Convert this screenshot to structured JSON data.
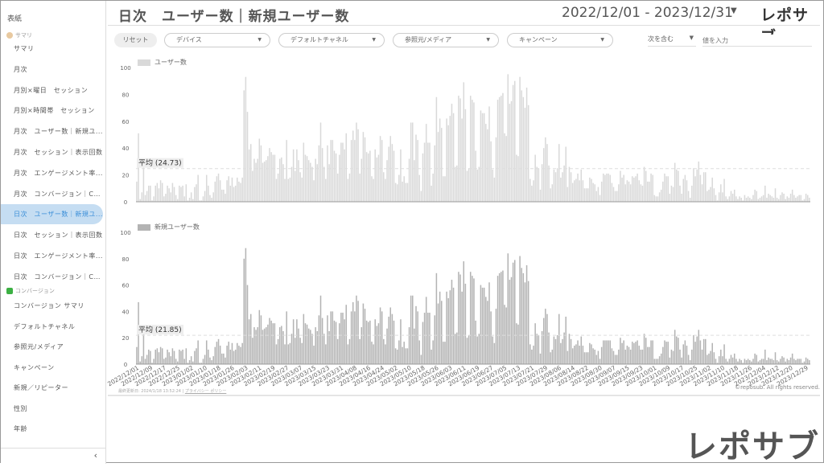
{
  "sidebar": {
    "cover": "表紙",
    "section_summary": "サマリ",
    "summary_items": [
      {
        "label": "サマリ"
      },
      {
        "label": "月次"
      },
      {
        "label": "月別×曜日　セッション"
      },
      {
        "label": "月別×時間帯　セッション"
      },
      {
        "label": "月次　ユーザー数｜新規ユ..."
      },
      {
        "label": "月次　セッション｜表示回数"
      },
      {
        "label": "月次　エンゲージメント率..."
      },
      {
        "label": "月次　コンバージョン｜CVR"
      },
      {
        "label": "日次　ユーザー数｜新規ユ..."
      },
      {
        "label": "日次　セッション｜表示回数"
      },
      {
        "label": "日次　エンゲージメント率..."
      },
      {
        "label": "日次　コンバージョン｜CVR"
      }
    ],
    "active_index": 8,
    "section_conversion": "コンバージョン",
    "conversion_items": [
      {
        "label": "コンバージョン サマリ"
      },
      {
        "label": "デフォルトチャネル"
      },
      {
        "label": "参照元/メディア"
      },
      {
        "label": "キャンペーン"
      },
      {
        "label": "新規／リピーター"
      },
      {
        "label": "性別"
      },
      {
        "label": "年齢"
      }
    ],
    "collapse_icon": "chevron-left-icon",
    "collapse_glyph": "‹"
  },
  "header": {
    "title": "日次　ユーザー数｜新規ユーザー数",
    "date_range": "2022/12/01 - 2023/12/31",
    "logo": "レポサブ"
  },
  "filters": {
    "reset": "リセット",
    "device": "デバイス",
    "channel": "デフォルトチャネル",
    "source": "参照元/メディア",
    "campaign": "キャンペーン",
    "contains": "次を含む",
    "value_placeholder": "値を入力"
  },
  "footer": {
    "updated": "最終更新日: 2024/1/18 13:52:24 | ",
    "privacy": "プライバシー ポリシー",
    "copyright": "©reposub. All rights reserved."
  },
  "watermark_logo": "レポサブ",
  "chart_data": [
    {
      "type": "bar",
      "series_name": "ユーザー数",
      "color": "#d9d9d9",
      "ylim": [
        0,
        100
      ],
      "yticks": [
        0,
        20,
        40,
        60,
        80,
        100
      ],
      "average_label": "平均 (24.73)",
      "average": 24.73,
      "x_start": "2022/12/01",
      "x_end": "2023/12/31",
      "values": [
        15,
        51,
        2,
        7,
        27,
        5,
        8,
        12,
        12,
        1,
        4,
        12,
        14,
        10,
        16,
        14,
        4,
        6,
        12,
        10,
        7,
        14,
        11,
        5,
        2,
        12,
        11,
        12,
        4,
        13,
        1,
        3,
        7,
        2,
        11,
        13,
        20,
        1,
        1,
        4,
        8,
        20,
        12,
        5,
        3,
        7,
        15,
        19,
        21,
        16,
        9,
        9,
        6,
        16,
        19,
        12,
        18,
        11,
        12,
        18,
        15,
        14,
        18,
        83,
        93,
        67,
        39,
        43,
        23,
        32,
        29,
        32,
        47,
        42,
        29,
        30,
        31,
        34,
        40,
        37,
        35,
        35,
        17,
        21,
        32,
        33,
        28,
        17,
        46,
        17,
        18,
        26,
        39,
        23,
        39,
        31,
        22,
        18,
        44,
        35,
        34,
        31,
        29,
        26,
        16,
        32,
        28,
        42,
        59,
        40,
        26,
        17,
        42,
        28,
        46,
        46,
        38,
        36,
        21,
        35,
        44,
        44,
        39,
        51,
        17,
        21,
        46,
        53,
        46,
        59,
        54,
        21,
        32,
        52,
        48,
        37,
        36,
        38,
        19,
        17,
        39,
        33,
        35,
        49,
        46,
        22,
        17,
        31,
        41,
        49,
        43,
        38,
        14,
        13,
        20,
        39,
        15,
        19,
        14,
        14,
        32,
        59,
        59,
        31,
        50,
        46,
        20,
        8,
        36,
        44,
        58,
        44,
        44,
        12,
        21,
        42,
        78,
        52,
        62,
        55,
        19,
        19,
        62,
        57,
        64,
        73,
        66,
        26,
        27,
        79,
        77,
        62,
        89,
        69,
        23,
        25,
        79,
        76,
        74,
        38,
        24,
        26,
        68,
        66,
        66,
        58,
        54,
        71,
        45,
        24,
        18,
        48,
        76,
        78,
        79,
        81,
        51,
        49,
        95,
        73,
        75,
        87,
        90,
        35,
        34,
        93,
        83,
        78,
        70,
        85,
        72,
        17,
        12,
        16,
        35,
        26,
        25,
        9,
        28,
        40,
        48,
        43,
        27,
        10,
        13,
        24,
        22,
        25,
        43,
        18,
        22,
        27,
        41,
        11,
        26,
        22,
        14,
        16,
        17,
        21,
        16,
        24,
        16,
        10,
        10,
        10,
        18,
        17,
        14,
        13,
        8,
        11,
        5,
        15,
        21,
        20,
        21,
        21,
        20,
        14,
        11,
        8,
        8,
        13,
        23,
        18,
        20,
        13,
        16,
        15,
        13,
        19,
        18,
        19,
        21,
        16,
        13,
        12,
        26,
        23,
        15,
        15,
        21,
        20,
        5,
        4,
        4,
        7,
        9,
        15,
        21,
        19,
        19,
        6,
        12,
        11,
        29,
        24,
        23,
        12,
        6,
        17,
        20,
        16,
        8,
        3,
        12,
        25,
        19,
        24,
        30,
        20,
        13,
        22,
        22,
        8,
        9,
        11,
        18,
        10,
        5,
        1,
        7,
        13,
        7,
        17,
        4,
        2,
        4,
        8,
        6,
        9,
        4,
        2,
        4,
        3,
        1,
        5,
        3,
        4,
        3,
        2,
        5,
        9,
        8,
        2,
        3,
        4,
        5,
        12,
        3,
        6,
        5,
        4,
        3,
        10,
        3,
        2,
        5,
        7,
        6,
        2,
        4,
        3,
        6,
        9,
        5,
        3,
        4,
        5,
        5,
        1,
        2,
        6,
        5,
        3
      ]
    },
    {
      "type": "bar",
      "series_name": "新規ユーザー数",
      "color": "#b3b3b3",
      "ylim": [
        0,
        100
      ],
      "yticks": [
        0,
        20,
        40,
        60,
        80,
        100
      ],
      "average_label": "平均 (21.85)",
      "average": 21.85,
      "x_start": "2022/12/01",
      "x_end": "2023/12/31",
      "values": [
        13,
        47,
        2,
        6,
        23,
        4,
        7,
        11,
        10,
        1,
        4,
        11,
        12,
        9,
        13,
        12,
        4,
        5,
        11,
        9,
        6,
        12,
        10,
        4,
        2,
        11,
        10,
        11,
        4,
        12,
        1,
        3,
        6,
        2,
        10,
        12,
        18,
        1,
        1,
        4,
        7,
        18,
        11,
        5,
        3,
        6,
        13,
        17,
        19,
        14,
        8,
        8,
        5,
        14,
        17,
        11,
        16,
        10,
        11,
        16,
        14,
        13,
        16,
        80,
        88,
        60,
        34,
        38,
        20,
        28,
        26,
        28,
        41,
        37,
        26,
        27,
        28,
        30,
        35,
        33,
        31,
        31,
        15,
        19,
        28,
        29,
        25,
        15,
        40,
        15,
        16,
        23,
        34,
        20,
        34,
        27,
        20,
        16,
        38,
        31,
        30,
        27,
        26,
        23,
        14,
        28,
        25,
        37,
        52,
        35,
        23,
        15,
        37,
        25,
        40,
        40,
        33,
        32,
        19,
        31,
        39,
        39,
        34,
        45,
        15,
        19,
        40,
        47,
        40,
        52,
        48,
        19,
        28,
        46,
        42,
        33,
        32,
        33,
        17,
        15,
        34,
        29,
        31,
        43,
        40,
        19,
        15,
        27,
        36,
        43,
        38,
        33,
        12,
        11,
        18,
        34,
        13,
        17,
        12,
        12,
        28,
        52,
        52,
        27,
        44,
        40,
        18,
        7,
        32,
        39,
        51,
        39,
        39,
        11,
        18,
        37,
        69,
        46,
        55,
        48,
        17,
        17,
        55,
        50,
        56,
        64,
        58,
        23,
        24,
        70,
        68,
        55,
        78,
        61,
        20,
        22,
        70,
        67,
        65,
        33,
        21,
        23,
        60,
        58,
        58,
        51,
        48,
        62,
        40,
        21,
        16,
        42,
        67,
        69,
        70,
        71,
        45,
        43,
        84,
        64,
        66,
        77,
        79,
        31,
        30,
        82,
        73,
        69,
        62,
        75,
        63,
        15,
        11,
        14,
        31,
        23,
        22,
        8,
        25,
        35,
        42,
        38,
        24,
        9,
        11,
        21,
        19,
        22,
        38,
        16,
        19,
        24,
        36,
        10,
        23,
        19,
        12,
        14,
        15,
        18,
        14,
        21,
        14,
        9,
        9,
        9,
        16,
        15,
        12,
        11,
        7,
        10,
        4,
        13,
        18,
        18,
        18,
        18,
        18,
        12,
        10,
        7,
        7,
        11,
        20,
        16,
        18,
        11,
        14,
        13,
        11,
        17,
        16,
        17,
        18,
        14,
        11,
        11,
        23,
        20,
        13,
        13,
        18,
        18,
        4,
        4,
        4,
        6,
        8,
        13,
        18,
        17,
        17,
        5,
        11,
        10,
        26,
        21,
        20,
        11,
        5,
        15,
        18,
        14,
        7,
        3,
        11,
        22,
        17,
        21,
        26,
        18,
        11,
        19,
        19,
        7,
        8,
        10,
        16,
        9,
        4,
        1,
        6,
        11,
        6,
        15,
        4,
        2,
        4,
        7,
        5,
        8,
        4,
        2,
        4,
        3,
        1,
        4,
        3,
        4,
        3,
        2,
        4,
        8,
        7,
        2,
        3,
        4,
        4,
        11,
        3,
        5,
        4,
        4,
        3,
        9,
        3,
        2,
        4,
        6,
        5,
        2,
        4,
        3,
        5,
        8,
        4,
        3,
        4,
        4,
        4,
        1,
        2,
        5,
        4,
        3
      ]
    }
  ],
  "x_tick_labels": [
    "2022/12/01",
    "2022/12/09",
    "2022/12/17",
    "2022/12/25",
    "2023/01/02",
    "2023/01/10",
    "2023/01/18",
    "2023/01/26",
    "2023/02/03",
    "2023/02/11",
    "2023/02/19",
    "2023/02/27",
    "2023/03/07",
    "2023/03/15",
    "2023/03/23",
    "2023/03/31",
    "2023/04/08",
    "2023/04/16",
    "2023/04/24",
    "2023/05/02",
    "2023/05/10",
    "2023/05/18",
    "2023/05/26",
    "2023/06/03",
    "2023/06/11",
    "2023/06/19",
    "2023/06/27",
    "2023/07/05",
    "2023/07/13",
    "2023/07/21",
    "2023/07/29",
    "2023/08/06",
    "2023/08/14",
    "2023/08/22",
    "2023/08/30",
    "2023/09/07",
    "2023/09/15",
    "2023/09/23",
    "2023/10/01",
    "2023/10/09",
    "2023/10/17",
    "2023/10/25",
    "2023/11/02",
    "2023/11/10",
    "2023/11/18",
    "2023/11/26",
    "2023/12/04",
    "2023/12/12",
    "2023/12/20",
    "2023/12/29"
  ]
}
